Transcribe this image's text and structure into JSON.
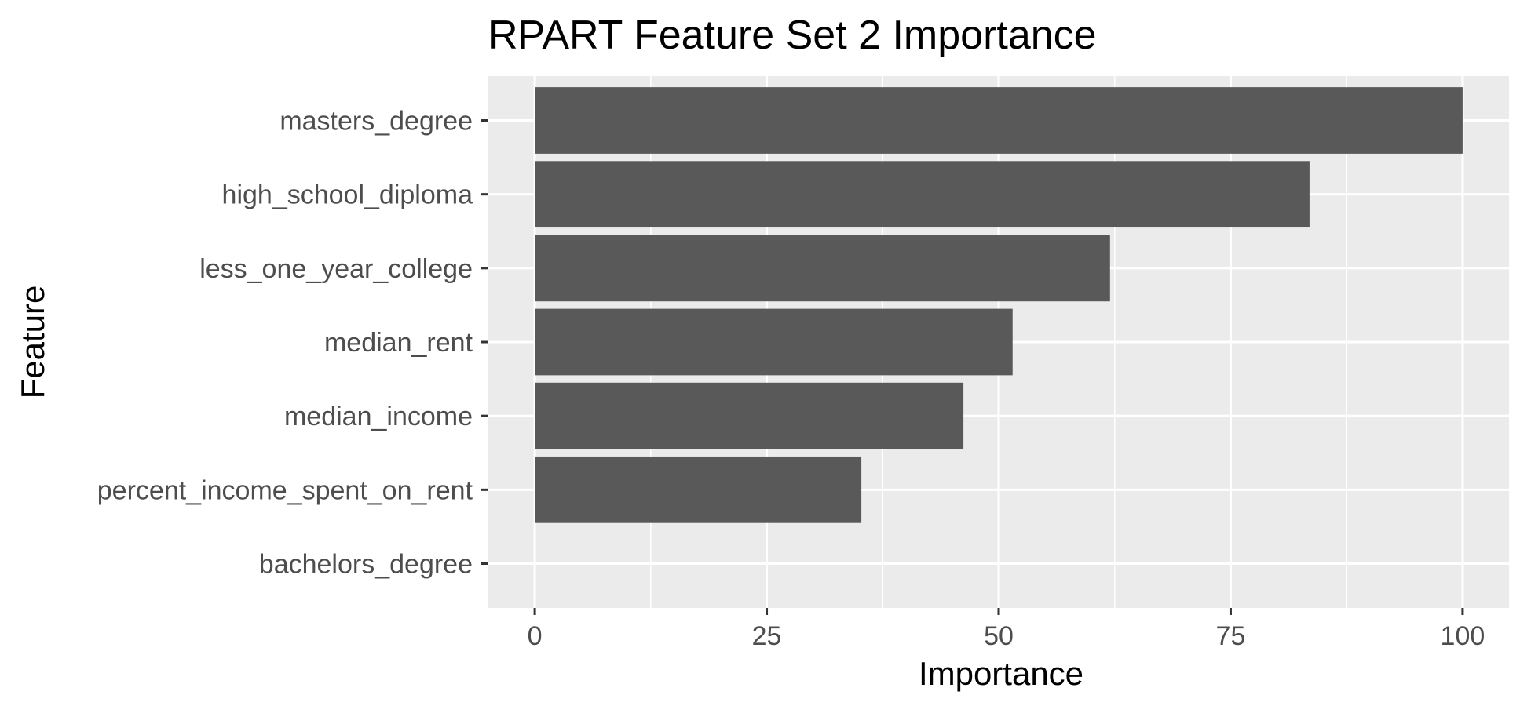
{
  "chart_data": {
    "type": "bar",
    "orientation": "horizontal",
    "title": "RPART Feature Set 2 Importance",
    "xlabel": "Importance",
    "ylabel": "Feature",
    "categories": [
      "masters_degree",
      "high_school_diploma",
      "less_one_year_college",
      "median_rent",
      "median_income",
      "percent_income_spent_on_rent",
      "bachelors_degree"
    ],
    "values": [
      100,
      83.5,
      62,
      51.5,
      46.2,
      35.2,
      0
    ],
    "x_ticks": [
      0,
      25,
      50,
      75,
      100
    ],
    "xlim": [
      -5,
      105
    ],
    "grid": true,
    "legend": "none",
    "colors": {
      "bar": "#595959",
      "panel_background": "#ebebeb",
      "grid_line": "#ffffff",
      "tick_mark": "#333333",
      "tick_label": "#4d4d4d"
    }
  }
}
